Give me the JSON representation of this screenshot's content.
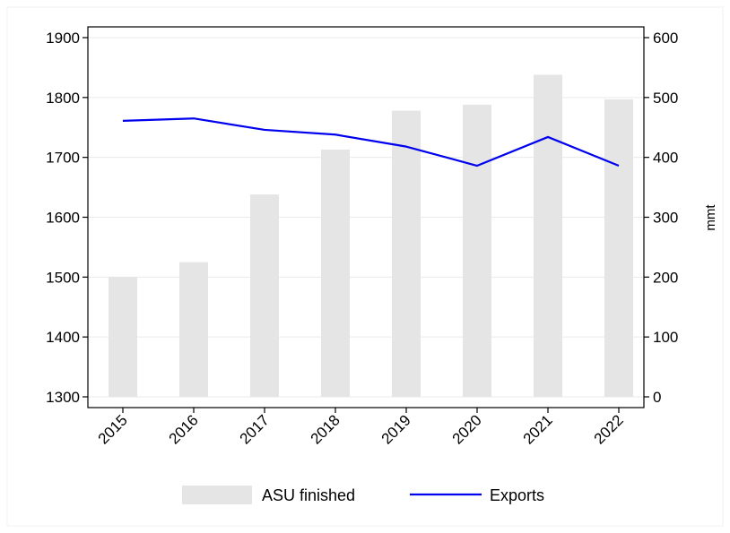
{
  "chart_data": {
    "type": "bar",
    "categories": [
      "2015",
      "2016",
      "2017",
      "2018",
      "2019",
      "2020",
      "2021",
      "2022"
    ],
    "series": [
      {
        "name": "ASU finished",
        "type": "bar",
        "axis": "left",
        "values": [
          1500,
          1525,
          1638,
          1713,
          1778,
          1788,
          1838,
          1797
        ],
        "color": "#e5e5e5"
      },
      {
        "name": "Exports",
        "type": "line",
        "axis": "right",
        "values": [
          461,
          465,
          446,
          438,
          418,
          386,
          434,
          386
        ],
        "color": "#0000ee"
      }
    ],
    "y_left": {
      "label": "",
      "lim": [
        1300,
        1900
      ],
      "ticks": [
        "1300",
        "1400",
        "1500",
        "1600",
        "1700",
        "1800",
        "1900"
      ]
    },
    "y_right": {
      "label": "mmt",
      "lim": [
        0,
        600
      ],
      "ticks": [
        "0",
        "100",
        "200",
        "300",
        "400",
        "500",
        "600"
      ]
    },
    "grid": true,
    "legend_position": "bottom"
  }
}
